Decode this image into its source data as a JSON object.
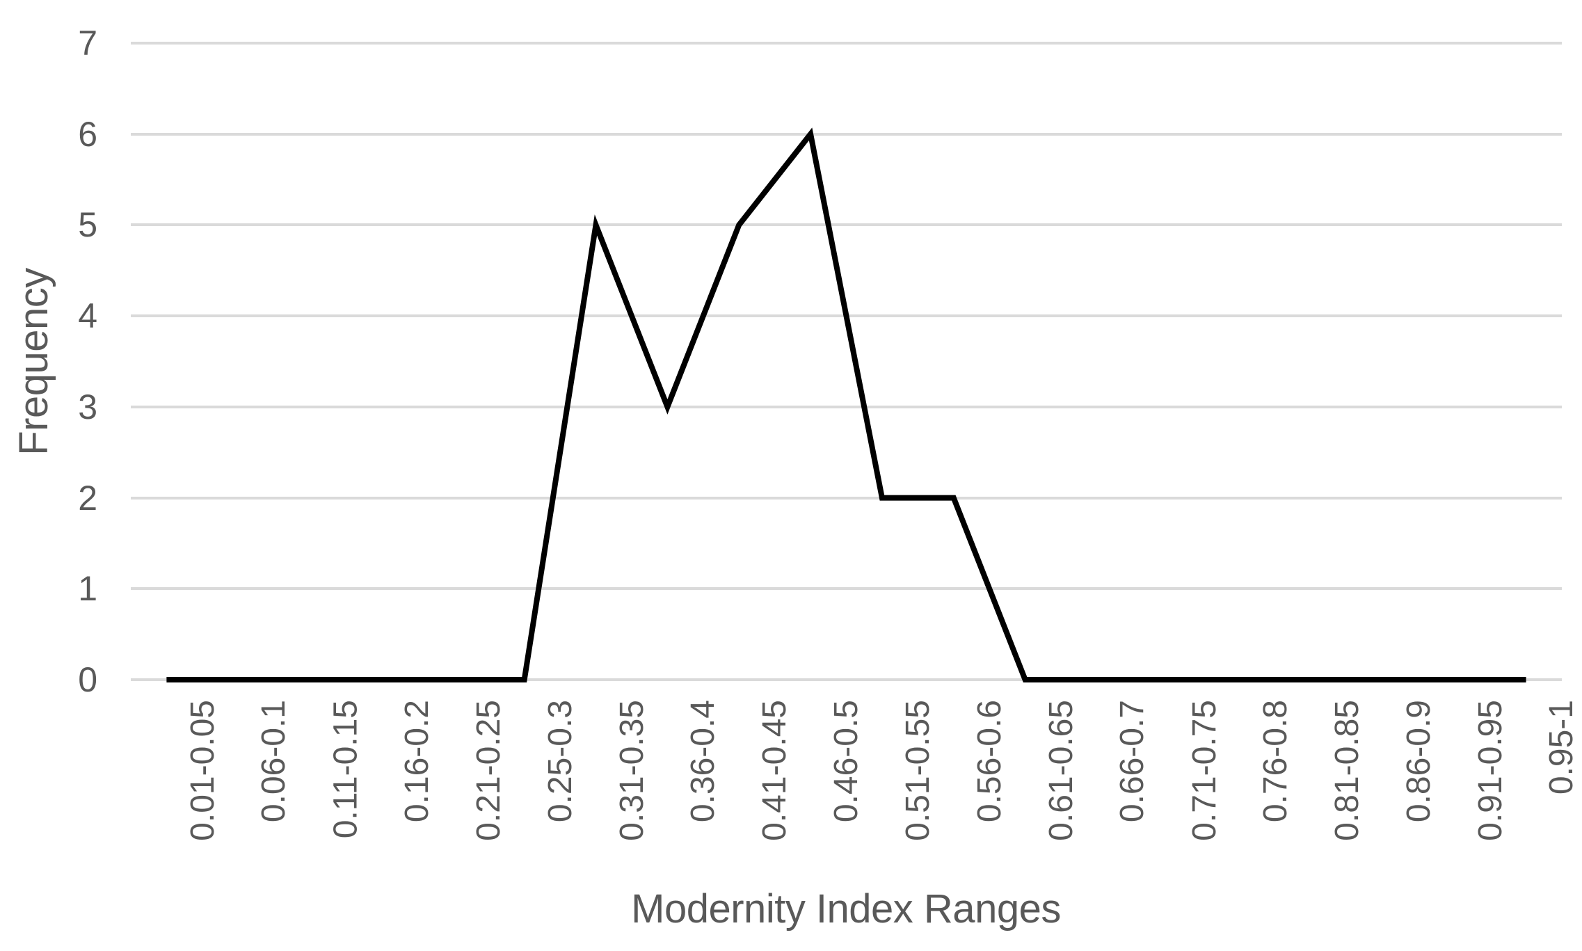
{
  "chart_data": {
    "type": "line",
    "categories": [
      "0.01-0.05",
      "0.06-0.1",
      "0.11-0.15",
      "0.16-0.2",
      "0.21-0.25",
      "0.25-0.3",
      "0.31-0.35",
      "0.36-0.4",
      "0.41-0.45",
      "0.46-0.5",
      "0.51-0.55",
      "0.56-0.6",
      "0.61-0.65",
      "0.66-0.7",
      "0.71-0.75",
      "0.76-0.8",
      "0.81-0.85",
      "0.86-0.9",
      "0.91-0.95",
      "0.95-1"
    ],
    "values": [
      0,
      0,
      0,
      0,
      0,
      0,
      5,
      3,
      5,
      6,
      2,
      2,
      0,
      0,
      0,
      0,
      0,
      0,
      0,
      0
    ],
    "title": "",
    "xlabel": "Modernity Index Ranges",
    "ylabel": "Frequency",
    "ylim": [
      0,
      7
    ],
    "yticks": [
      0,
      1,
      2,
      3,
      4,
      5,
      6,
      7
    ],
    "grid": "horizontal",
    "legend": "none",
    "colors": {
      "line": "#000000",
      "gridline": "#dadada",
      "text": "#595959",
      "background": "#ffffff"
    }
  }
}
